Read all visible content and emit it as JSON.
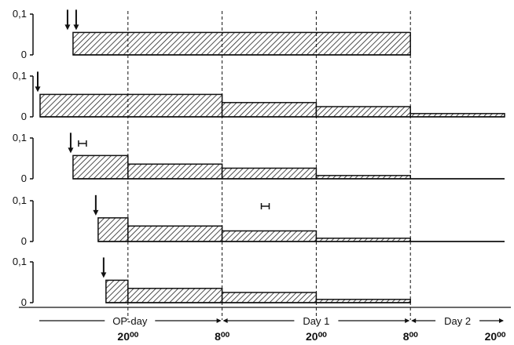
{
  "chart_data": {
    "type": "bar",
    "panels": [
      {
        "y_ticks": [
          "0,1",
          "0"
        ],
        "ylim": [
          0,
          0.1
        ],
        "arrows": 2,
        "error_bar": false,
        "steps": [
          {
            "x0": -7,
            "x1": 36,
            "value": 0.055
          }
        ]
      },
      {
        "y_ticks": [
          "0,1",
          "0"
        ],
        "ylim": [
          0,
          0.1
        ],
        "arrows": 1,
        "error_bar": false,
        "steps": [
          {
            "x0": -11.2,
            "x1": 12,
            "value": 0.055
          },
          {
            "x0": 12,
            "x1": 24,
            "value": 0.035
          },
          {
            "x0": 24,
            "x1": 36,
            "value": 0.025
          },
          {
            "x0": 36,
            "x1": 48,
            "value": 0.008
          }
        ]
      },
      {
        "y_ticks": [
          "0,1",
          "0"
        ],
        "ylim": [
          0,
          0.1
        ],
        "arrows": 1,
        "error_bar": true,
        "error_bar_x": -5.8,
        "steps": [
          {
            "x0": -7,
            "x1": 0,
            "value": 0.057
          },
          {
            "x0": 0,
            "x1": 12,
            "value": 0.036
          },
          {
            "x0": 12,
            "x1": 24,
            "value": 0.026
          },
          {
            "x0": 24,
            "x1": 36,
            "value": 0.008
          },
          {
            "x0": 36,
            "x1": 48,
            "value": 0.0
          }
        ]
      },
      {
        "y_ticks": [
          "0,1",
          "0"
        ],
        "ylim": [
          0,
          0.1
        ],
        "arrows": 1,
        "error_bar": true,
        "error_bar_x": 17.5,
        "steps": [
          {
            "x0": -3.8,
            "x1": 0,
            "value": 0.058
          },
          {
            "x0": 0,
            "x1": 12,
            "value": 0.038
          },
          {
            "x0": 12,
            "x1": 24,
            "value": 0.026
          },
          {
            "x0": 24,
            "x1": 36,
            "value": 0.008
          },
          {
            "x0": 36,
            "x1": 48,
            "value": 0.0
          }
        ]
      },
      {
        "y_ticks": [
          "0,1",
          "0"
        ],
        "ylim": [
          0,
          0.1
        ],
        "arrows": 1,
        "error_bar": false,
        "steps": [
          {
            "x0": -2.8,
            "x1": 0,
            "value": 0.055
          },
          {
            "x0": 0,
            "x1": 12,
            "value": 0.035
          },
          {
            "x0": 12,
            "x1": 24,
            "value": 0.025
          },
          {
            "x0": 24,
            "x1": 36,
            "value": 0.008
          }
        ]
      }
    ],
    "x_axis": {
      "xlim": [
        -11.5,
        48
      ],
      "boundaries": [
        0,
        12,
        24,
        36
      ],
      "time_labels": [
        {
          "at": 0,
          "text": "20⁰⁰"
        },
        {
          "at": 12,
          "text": "8⁰⁰"
        },
        {
          "at": 24,
          "text": "20⁰⁰"
        },
        {
          "at": 36,
          "text": "8⁰⁰"
        },
        {
          "at": 48,
          "text": "20⁰⁰"
        }
      ],
      "periods": [
        {
          "from": -11.5,
          "to": 12,
          "text": "OP-day"
        },
        {
          "from": 12,
          "to": 36,
          "text": "Day 1"
        },
        {
          "from": 36,
          "to": 48,
          "text": "Day 2"
        }
      ]
    }
  }
}
